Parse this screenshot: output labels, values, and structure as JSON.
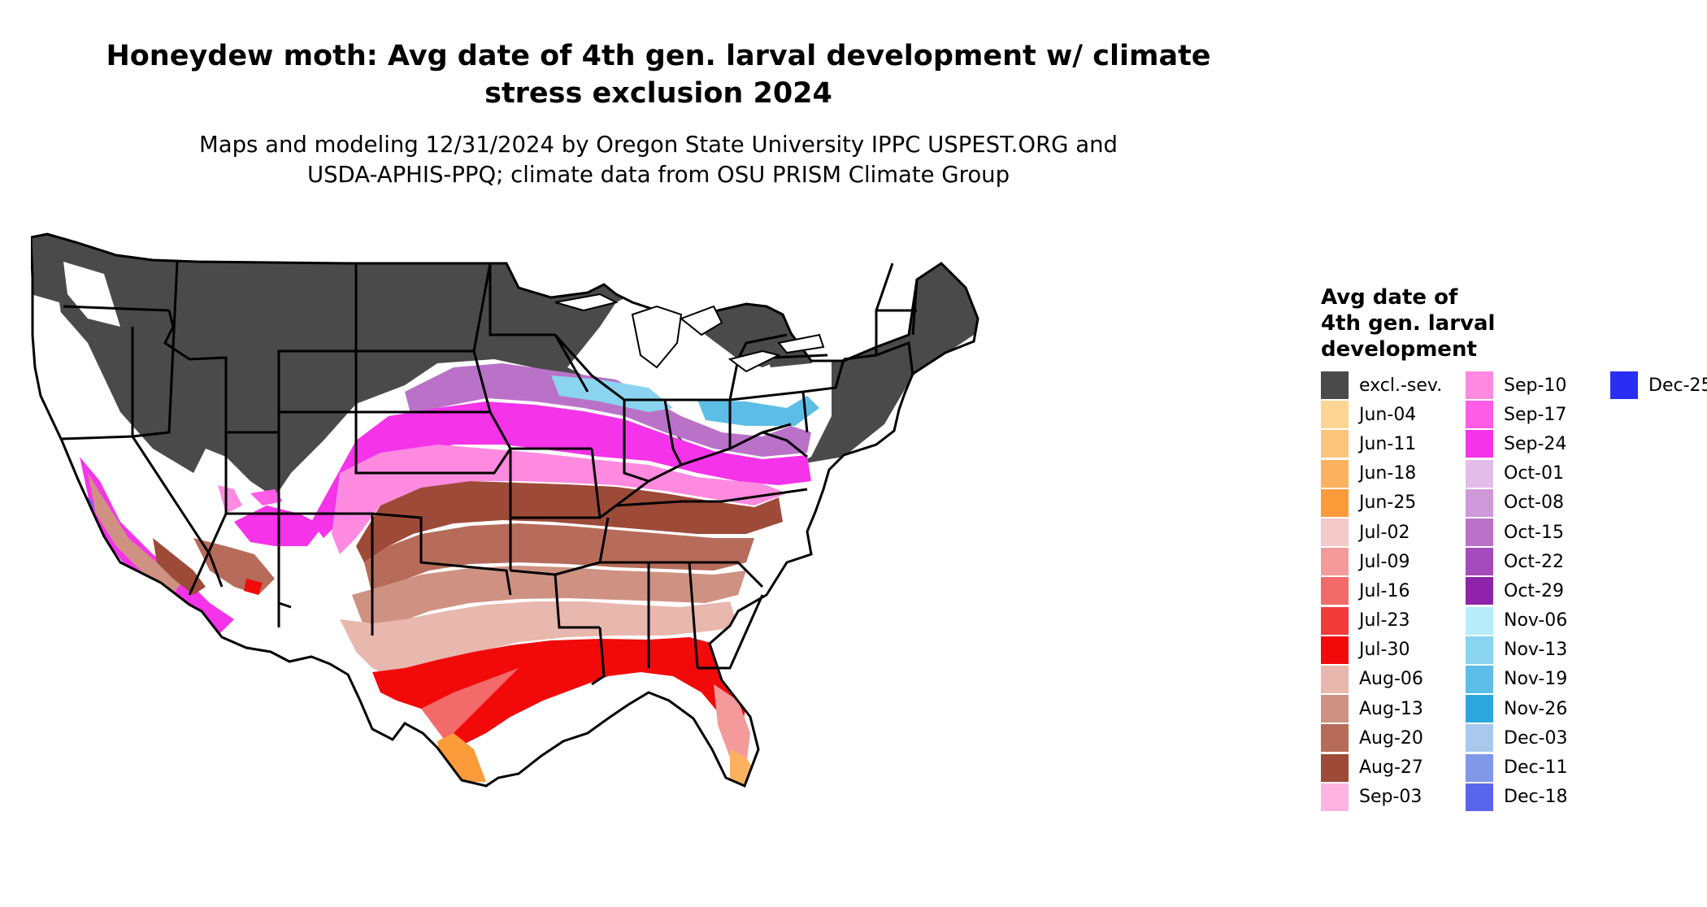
{
  "map": {
    "title": "Honeydew moth: Avg date of 4th gen. larval development w/ climate\nstress exclusion 2024",
    "subtitle": "Maps and modeling 12/31/2024 by Oregon State University IPPC USPEST.ORG and\nUSDA-APHIS-PPQ; climate data from OSU PRISM Climate Group",
    "region": "Contiguous United States"
  },
  "legend": {
    "title": "Avg date of\n4th gen. larval\ndevelopment",
    "columns": [
      [
        {
          "label": "excl.-sev.",
          "color": "#4a4a4a"
        },
        {
          "label": "Jun-04",
          "color": "#fdd693"
        },
        {
          "label": "Jun-11",
          "color": "#fdc47c"
        },
        {
          "label": "Jun-18",
          "color": "#fcb15e"
        },
        {
          "label": "Jun-25",
          "color": "#fb9b3a"
        },
        {
          "label": "Jul-02",
          "color": "#f4c9c9"
        },
        {
          "label": "Jul-09",
          "color": "#f49a9a"
        },
        {
          "label": "Jul-16",
          "color": "#f36a6a"
        },
        {
          "label": "Jul-23",
          "color": "#f23a3a"
        },
        {
          "label": "Jul-30",
          "color": "#f20a0a"
        },
        {
          "label": "Aug-06",
          "color": "#e8b7ae"
        },
        {
          "label": "Aug-13",
          "color": "#cf9282"
        },
        {
          "label": "Aug-20",
          "color": "#b76c5b"
        },
        {
          "label": "Aug-27",
          "color": "#9d4a38"
        },
        {
          "label": "Sep-03",
          "color": "#ffb3e0"
        }
      ],
      [
        {
          "label": "Sep-10",
          "color": "#ff8ae0"
        },
        {
          "label": "Sep-17",
          "color": "#ff5ce8"
        },
        {
          "label": "Sep-24",
          "color": "#f533e9"
        },
        {
          "label": "Oct-01",
          "color": "#e2bde8"
        },
        {
          "label": "Oct-08",
          "color": "#cf98d8"
        },
        {
          "label": "Oct-15",
          "color": "#ba72c9"
        },
        {
          "label": "Oct-22",
          "color": "#a64bbb"
        },
        {
          "label": "Oct-29",
          "color": "#8f24ab"
        },
        {
          "label": "Nov-06",
          "color": "#b8ecfb"
        },
        {
          "label": "Nov-13",
          "color": "#8ad4f0"
        },
        {
          "label": "Nov-19",
          "color": "#5cbee6"
        },
        {
          "label": "Nov-26",
          "color": "#2ea7dc"
        },
        {
          "label": "Dec-03",
          "color": "#a9c8ec"
        },
        {
          "label": "Dec-11",
          "color": "#8197e8"
        },
        {
          "label": "Dec-18",
          "color": "#5966ec"
        }
      ],
      [
        {
          "label": "Dec-25",
          "color": "#2a2ef2"
        }
      ]
    ]
  }
}
